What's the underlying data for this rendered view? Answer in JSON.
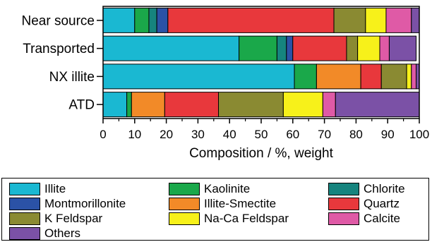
{
  "chart_data": {
    "type": "bar",
    "orientation": "horizontal",
    "stacked": true,
    "categories": [
      "Near source",
      "Transported",
      "NX illite",
      "ATD"
    ],
    "xlabel": "Composition / %, weight",
    "xlim": [
      0,
      100
    ],
    "xticks": [
      "0",
      "10",
      "20",
      "30",
      "40",
      "50",
      "60",
      "70",
      "80",
      "90",
      "100"
    ],
    "series": [
      {
        "name": "Illite",
        "color": "#1ab8d2",
        "values": [
          10,
          43,
          60.5,
          7.5
        ]
      },
      {
        "name": "Kaolinite",
        "color": "#1aa84a",
        "values": [
          4.5,
          12,
          7,
          1.5
        ]
      },
      {
        "name": "Chlorite",
        "color": "#16847e",
        "values": [
          2.5,
          3,
          0,
          0
        ]
      },
      {
        "name": "Montmorillonite",
        "color": "#2b52a6",
        "values": [
          3.5,
          2,
          0,
          0
        ]
      },
      {
        "name": "Illite-Smectite",
        "color": "#f28a28",
        "values": [
          0,
          0,
          14,
          10.5
        ]
      },
      {
        "name": "Quartz",
        "color": "#e8383c",
        "values": [
          52.5,
          17,
          6.5,
          17
        ]
      },
      {
        "name": "K Feldspar",
        "color": "#8a8a32",
        "values": [
          10,
          3.5,
          8,
          20.5
        ]
      },
      {
        "name": "Na-Ca Feldspar",
        "color": "#f7f11a",
        "values": [
          6.5,
          7,
          1.5,
          12.5
        ]
      },
      {
        "name": "Calcite",
        "color": "#df5aa6",
        "values": [
          8,
          3,
          1.5,
          4
        ]
      },
      {
        "name": "Others",
        "color": "#7b51a6",
        "values": [
          2.5,
          8.5,
          1,
          26.5
        ]
      }
    ]
  }
}
